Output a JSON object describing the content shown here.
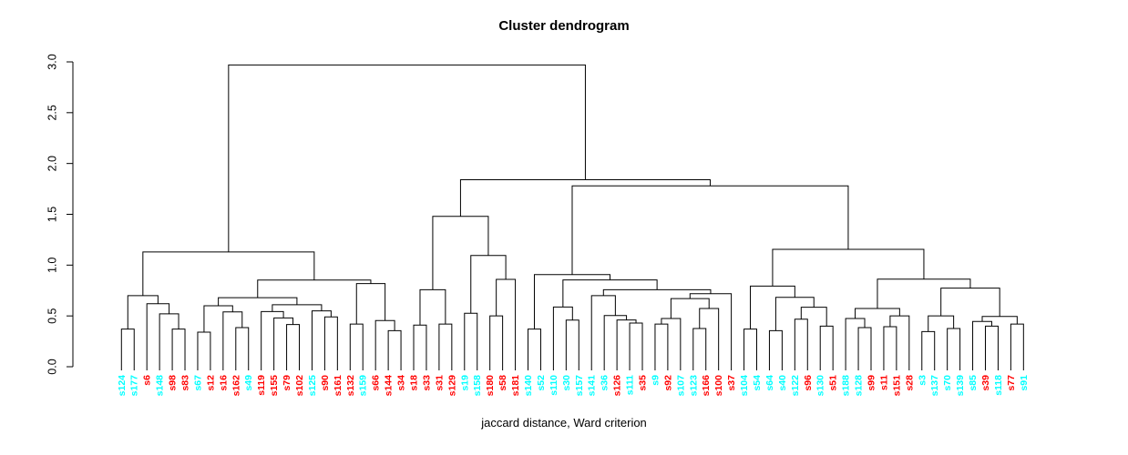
{
  "title": "Cluster dendrogram",
  "xlabel": "jaccard distance, Ward criterion",
  "colors": {
    "red": "#FF0000",
    "cyan": "#00FFFF",
    "line": "#000000",
    "axis": "#000000"
  },
  "chart_data": {
    "type": "dendrogram",
    "title": "Cluster dendrogram",
    "xlabel": "jaccard distance, Ward criterion",
    "ylabel": "",
    "y_axis": {
      "range": [
        0,
        3
      ],
      "tick_labels": [
        "0.0",
        "0.5",
        "1.0",
        "1.5",
        "2.0",
        "2.5",
        "3.0"
      ],
      "grid": false
    },
    "leaves": [
      {
        "label": "s124",
        "color": "cyan"
      },
      {
        "label": "s177",
        "color": "cyan"
      },
      {
        "label": "s6",
        "color": "red"
      },
      {
        "label": "s148",
        "color": "cyan"
      },
      {
        "label": "s98",
        "color": "red"
      },
      {
        "label": "s83",
        "color": "red"
      },
      {
        "label": "s67",
        "color": "cyan"
      },
      {
        "label": "s12",
        "color": "red"
      },
      {
        "label": "s16",
        "color": "red"
      },
      {
        "label": "s162",
        "color": "red"
      },
      {
        "label": "s49",
        "color": "cyan"
      },
      {
        "label": "s119",
        "color": "red"
      },
      {
        "label": "s155",
        "color": "red"
      },
      {
        "label": "s79",
        "color": "red"
      },
      {
        "label": "s102",
        "color": "red"
      },
      {
        "label": "s125",
        "color": "cyan"
      },
      {
        "label": "s90",
        "color": "red"
      },
      {
        "label": "s161",
        "color": "red"
      },
      {
        "label": "s132",
        "color": "red"
      },
      {
        "label": "s159",
        "color": "cyan"
      },
      {
        "label": "s66",
        "color": "red"
      },
      {
        "label": "s144",
        "color": "red"
      },
      {
        "label": "s34",
        "color": "red"
      },
      {
        "label": "s18",
        "color": "red"
      },
      {
        "label": "s33",
        "color": "red"
      },
      {
        "label": "s31",
        "color": "red"
      },
      {
        "label": "s129",
        "color": "red"
      },
      {
        "label": "s19",
        "color": "cyan"
      },
      {
        "label": "s158",
        "color": "cyan"
      },
      {
        "label": "s180",
        "color": "red"
      },
      {
        "label": "s58",
        "color": "red"
      },
      {
        "label": "s181",
        "color": "red"
      },
      {
        "label": "s140",
        "color": "cyan"
      },
      {
        "label": "s52",
        "color": "cyan"
      },
      {
        "label": "s110",
        "color": "cyan"
      },
      {
        "label": "s30",
        "color": "cyan"
      },
      {
        "label": "s157",
        "color": "cyan"
      },
      {
        "label": "s141",
        "color": "cyan"
      },
      {
        "label": "s36",
        "color": "cyan"
      },
      {
        "label": "s126",
        "color": "red"
      },
      {
        "label": "s111",
        "color": "cyan"
      },
      {
        "label": "s35",
        "color": "red"
      },
      {
        "label": "s9",
        "color": "cyan"
      },
      {
        "label": "s92",
        "color": "red"
      },
      {
        "label": "s107",
        "color": "cyan"
      },
      {
        "label": "s123",
        "color": "cyan"
      },
      {
        "label": "s166",
        "color": "red"
      },
      {
        "label": "s100",
        "color": "red"
      },
      {
        "label": "s37",
        "color": "red"
      },
      {
        "label": "s104",
        "color": "cyan"
      },
      {
        "label": "s54",
        "color": "cyan"
      },
      {
        "label": "s64",
        "color": "cyan"
      },
      {
        "label": "s40",
        "color": "cyan"
      },
      {
        "label": "s122",
        "color": "cyan"
      },
      {
        "label": "s96",
        "color": "red"
      },
      {
        "label": "s130",
        "color": "cyan"
      },
      {
        "label": "s51",
        "color": "red"
      },
      {
        "label": "s188",
        "color": "cyan"
      },
      {
        "label": "s128",
        "color": "cyan"
      },
      {
        "label": "s99",
        "color": "red"
      },
      {
        "label": "s11",
        "color": "red"
      },
      {
        "label": "s151",
        "color": "red"
      },
      {
        "label": "s28",
        "color": "red"
      },
      {
        "label": "s3",
        "color": "cyan"
      },
      {
        "label": "s137",
        "color": "cyan"
      },
      {
        "label": "s70",
        "color": "cyan"
      },
      {
        "label": "s139",
        "color": "cyan"
      },
      {
        "label": "s85",
        "color": "cyan"
      },
      {
        "label": "s39",
        "color": "red"
      },
      {
        "label": "s118",
        "color": "cyan"
      },
      {
        "label": "s77",
        "color": "red"
      },
      {
        "label": "s91",
        "color": "cyan"
      }
    ],
    "merges": [
      [
        -1,
        -2,
        0.37
      ],
      [
        -5,
        -6,
        0.37
      ],
      [
        -4,
        2,
        0.52
      ],
      [
        -3,
        3,
        0.62
      ],
      [
        1,
        4,
        0.7
      ],
      [
        -7,
        -8,
        0.34
      ],
      [
        -10,
        -11,
        0.385
      ],
      [
        -9,
        7,
        0.54
      ],
      [
        6,
        8,
        0.6
      ],
      [
        -14,
        -15,
        0.415
      ],
      [
        -13,
        10,
        0.48
      ],
      [
        -12,
        11,
        0.543
      ],
      [
        -17,
        -18,
        0.49
      ],
      [
        -16,
        13,
        0.55
      ],
      [
        12,
        14,
        0.61
      ],
      [
        9,
        15,
        0.68
      ],
      [
        -19,
        -20,
        0.42
      ],
      [
        -22,
        -23,
        0.355
      ],
      [
        -21,
        18,
        0.454
      ],
      [
        17,
        19,
        0.818
      ],
      [
        16,
        20,
        0.853
      ],
      [
        5,
        21,
        1.13
      ],
      [
        -24,
        -25,
        0.41
      ],
      [
        -26,
        -27,
        0.42
      ],
      [
        23,
        24,
        0.758
      ],
      [
        -28,
        -29,
        0.526
      ],
      [
        -30,
        -31,
        0.5
      ],
      [
        27,
        -32,
        0.86
      ],
      [
        26,
        28,
        1.095
      ],
      [
        25,
        29,
        1.48
      ],
      [
        -33,
        -34,
        0.37
      ],
      [
        -36,
        -37,
        0.459
      ],
      [
        -35,
        32,
        0.588
      ],
      [
        -41,
        -42,
        0.43
      ],
      [
        -40,
        34,
        0.46
      ],
      [
        -39,
        35,
        0.504
      ],
      [
        -38,
        36,
        0.7
      ],
      [
        -43,
        -44,
        0.42
      ],
      [
        38,
        -45,
        0.475
      ],
      [
        -46,
        -47,
        0.376
      ],
      [
        40,
        -48,
        0.573
      ],
      [
        39,
        41,
        0.67
      ],
      [
        42,
        -49,
        0.719
      ],
      [
        37,
        43,
        0.758
      ],
      [
        33,
        44,
        0.854
      ],
      [
        31,
        45,
        0.907
      ],
      [
        -50,
        -51,
        0.37
      ],
      [
        -52,
        -53,
        0.355
      ],
      [
        -54,
        -55,
        0.468
      ],
      [
        -56,
        -57,
        0.4
      ],
      [
        49,
        50,
        0.585
      ],
      [
        48,
        51,
        0.683
      ],
      [
        47,
        52,
        0.794
      ],
      [
        -59,
        -60,
        0.385
      ],
      [
        -58,
        54,
        0.475
      ],
      [
        -61,
        -62,
        0.394
      ],
      [
        56,
        -63,
        0.5
      ],
      [
        55,
        57,
        0.573
      ],
      [
        -64,
        -65,
        0.346
      ],
      [
        -66,
        -67,
        0.376
      ],
      [
        59,
        60,
        0.5
      ],
      [
        -69,
        -70,
        0.4
      ],
      [
        -68,
        62,
        0.445
      ],
      [
        -71,
        -72,
        0.42
      ],
      [
        63,
        64,
        0.495
      ],
      [
        61,
        65,
        0.773
      ],
      [
        58,
        66,
        0.862
      ],
      [
        53,
        67,
        1.155
      ],
      [
        46,
        68,
        1.78
      ],
      [
        30,
        69,
        1.84
      ],
      [
        22,
        70,
        2.97
      ]
    ]
  }
}
